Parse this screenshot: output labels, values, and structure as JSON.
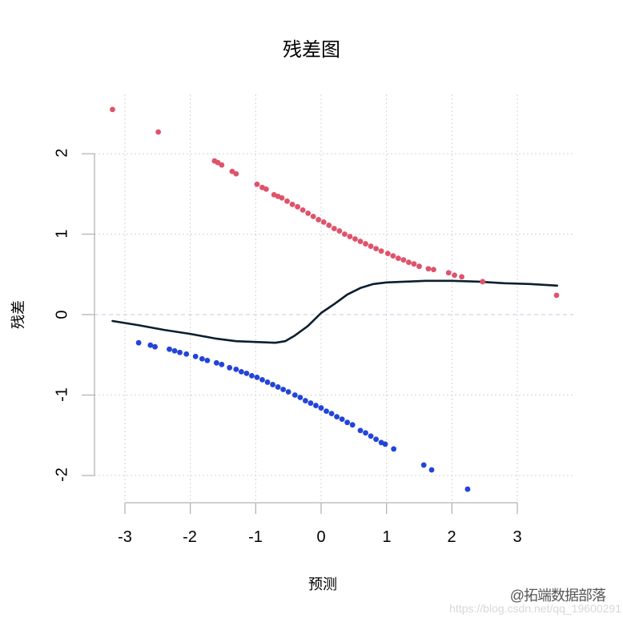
{
  "chart_data": {
    "type": "scatter",
    "title": "残差图",
    "xlabel": "预测",
    "ylabel": "残差",
    "xlim": [
      -3.4,
      3.9
    ],
    "ylim": [
      -2.35,
      2.7
    ],
    "x_ticks": [
      -3,
      -2,
      -1,
      0,
      1,
      2,
      3
    ],
    "y_ticks": [
      -2,
      -1,
      0,
      1,
      2
    ],
    "grid": true,
    "grid_style": "dotted light gray",
    "hline": {
      "y": 0,
      "style": "dashed",
      "color": "#c8c8e0"
    },
    "legend": null,
    "series": [
      {
        "name": "positive residuals",
        "type": "scatter",
        "color": "#DF536B",
        "points": [
          [
            -3.19,
            2.55
          ],
          [
            -2.49,
            2.27
          ],
          [
            -1.63,
            1.91
          ],
          [
            -1.58,
            1.89
          ],
          [
            -1.52,
            1.86
          ],
          [
            -1.36,
            1.78
          ],
          [
            -1.3,
            1.75
          ],
          [
            -0.98,
            1.62
          ],
          [
            -0.9,
            1.58
          ],
          [
            -0.84,
            1.56
          ],
          [
            -0.72,
            1.49
          ],
          [
            -0.66,
            1.47
          ],
          [
            -0.6,
            1.45
          ],
          [
            -0.52,
            1.41
          ],
          [
            -0.44,
            1.37
          ],
          [
            -0.36,
            1.34
          ],
          [
            -0.28,
            1.3
          ],
          [
            -0.2,
            1.26
          ],
          [
            -0.12,
            1.22
          ],
          [
            -0.04,
            1.18
          ],
          [
            0.04,
            1.15
          ],
          [
            0.12,
            1.11
          ],
          [
            0.2,
            1.07
          ],
          [
            0.28,
            1.04
          ],
          [
            0.36,
            1.0
          ],
          [
            0.44,
            0.97
          ],
          [
            0.52,
            0.94
          ],
          [
            0.6,
            0.91
          ],
          [
            0.68,
            0.88
          ],
          [
            0.76,
            0.85
          ],
          [
            0.84,
            0.82
          ],
          [
            0.92,
            0.79
          ],
          [
            1.02,
            0.76
          ],
          [
            1.1,
            0.73
          ],
          [
            1.18,
            0.7
          ],
          [
            1.26,
            0.68
          ],
          [
            1.34,
            0.65
          ],
          [
            1.42,
            0.63
          ],
          [
            1.5,
            0.6
          ],
          [
            1.64,
            0.57
          ],
          [
            1.72,
            0.56
          ],
          [
            1.95,
            0.52
          ],
          [
            2.04,
            0.49
          ],
          [
            2.15,
            0.47
          ],
          [
            2.47,
            0.41
          ],
          [
            3.6,
            0.24
          ]
        ]
      },
      {
        "name": "negative residuals",
        "type": "scatter",
        "color": "#2344D8",
        "points": [
          [
            -2.79,
            -0.35
          ],
          [
            -2.61,
            -0.38
          ],
          [
            -2.54,
            -0.4
          ],
          [
            -2.32,
            -0.43
          ],
          [
            -2.24,
            -0.45
          ],
          [
            -2.16,
            -0.47
          ],
          [
            -2.06,
            -0.49
          ],
          [
            -1.92,
            -0.52
          ],
          [
            -1.82,
            -0.55
          ],
          [
            -1.74,
            -0.57
          ],
          [
            -1.6,
            -0.6
          ],
          [
            -1.52,
            -0.62
          ],
          [
            -1.4,
            -0.66
          ],
          [
            -1.3,
            -0.68
          ],
          [
            -1.22,
            -0.71
          ],
          [
            -1.14,
            -0.73
          ],
          [
            -1.06,
            -0.76
          ],
          [
            -0.98,
            -0.78
          ],
          [
            -0.9,
            -0.81
          ],
          [
            -0.82,
            -0.84
          ],
          [
            -0.74,
            -0.87
          ],
          [
            -0.66,
            -0.9
          ],
          [
            -0.58,
            -0.93
          ],
          [
            -0.5,
            -0.96
          ],
          [
            -0.4,
            -1.0
          ],
          [
            -0.32,
            -1.03
          ],
          [
            -0.24,
            -1.07
          ],
          [
            -0.16,
            -1.1
          ],
          [
            -0.08,
            -1.13
          ],
          [
            0.0,
            -1.16
          ],
          [
            0.08,
            -1.2
          ],
          [
            0.16,
            -1.23
          ],
          [
            0.24,
            -1.27
          ],
          [
            0.32,
            -1.3
          ],
          [
            0.4,
            -1.34
          ],
          [
            0.48,
            -1.37
          ],
          [
            0.6,
            -1.44
          ],
          [
            0.68,
            -1.47
          ],
          [
            0.76,
            -1.51
          ],
          [
            0.84,
            -1.55
          ],
          [
            0.92,
            -1.59
          ],
          [
            0.98,
            -1.61
          ],
          [
            1.11,
            -1.67
          ],
          [
            1.57,
            -1.87
          ],
          [
            1.69,
            -1.93
          ],
          [
            2.24,
            -2.17
          ]
        ]
      },
      {
        "name": "smooth fit",
        "type": "line",
        "color": "#0B1F2E",
        "points": [
          [
            -3.19,
            -0.08
          ],
          [
            -2.8,
            -0.13
          ],
          [
            -2.4,
            -0.19
          ],
          [
            -2.0,
            -0.24
          ],
          [
            -1.6,
            -0.3
          ],
          [
            -1.3,
            -0.33
          ],
          [
            -1.0,
            -0.34
          ],
          [
            -0.7,
            -0.35
          ],
          [
            -0.55,
            -0.33
          ],
          [
            -0.4,
            -0.26
          ],
          [
            -0.2,
            -0.14
          ],
          [
            0.0,
            0.02
          ],
          [
            0.2,
            0.13
          ],
          [
            0.4,
            0.25
          ],
          [
            0.6,
            0.33
          ],
          [
            0.8,
            0.38
          ],
          [
            1.0,
            0.4
          ],
          [
            1.3,
            0.41
          ],
          [
            1.6,
            0.42
          ],
          [
            2.0,
            0.42
          ],
          [
            2.4,
            0.41
          ],
          [
            2.8,
            0.39
          ],
          [
            3.2,
            0.38
          ],
          [
            3.61,
            0.36
          ]
        ]
      }
    ]
  },
  "labels": {
    "title": "残差图",
    "xlabel": "预测",
    "ylabel": "残差",
    "x_ticks": [
      "-3",
      "-2",
      "-1",
      "0",
      "1",
      "2",
      "3"
    ],
    "y_ticks": [
      "2",
      "1",
      "0",
      "-1",
      "-2"
    ]
  },
  "watermark": {
    "line1": "@拓端数据部落",
    "line2": "https://blog.csdn.net/qq_19600291"
  }
}
